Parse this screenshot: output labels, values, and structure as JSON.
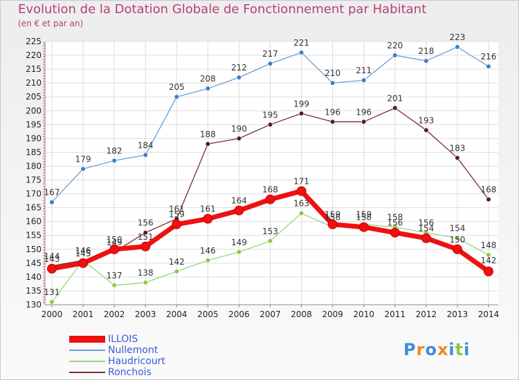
{
  "chart_data": {
    "type": "line",
    "title": "Evolution de la Dotation Globale de Fonctionnement par Habitant",
    "subtitle": "(en € et par an)",
    "categories": [
      "2000",
      "2001",
      "2002",
      "2003",
      "2004",
      "2005",
      "2006",
      "2007",
      "2008",
      "2009",
      "2010",
      "2011",
      "2012",
      "2013",
      "2014"
    ],
    "ylim": [
      130,
      225
    ],
    "yticks": [
      130,
      135,
      140,
      145,
      150,
      155,
      160,
      165,
      170,
      175,
      180,
      185,
      190,
      195,
      200,
      205,
      210,
      215,
      220,
      225
    ],
    "grid": true,
    "legend_position": "bottom-left",
    "series": [
      {
        "name": "Nullemont",
        "color": "#6b9fd4",
        "marker": "#3d7fc7",
        "values": [
          167,
          179,
          182,
          184,
          205,
          208,
          212,
          217,
          221,
          210,
          211,
          220,
          218,
          223,
          216
        ]
      },
      {
        "name": "Ronchois",
        "color": "#7a2c2c",
        "marker": "#5a1a1a",
        "values": [
          144,
          146,
          149,
          156,
          161,
          188,
          190,
          195,
          199,
          196,
          196,
          201,
          193,
          183,
          168
        ]
      },
      {
        "name": "Haudricourt",
        "color": "#9bd37a",
        "marker": "#88cc44",
        "values": [
          131,
          146,
          137,
          138,
          142,
          146,
          149,
          153,
          163,
          158,
          159,
          158,
          156,
          154,
          148
        ]
      },
      {
        "name": "ILLOIS",
        "color": "#ee1111",
        "marker": "#ee1111",
        "values": [
          143,
          145,
          150,
          151,
          159,
          161,
          164,
          168,
          171,
          159,
          158,
          156,
          154,
          150,
          142
        ]
      }
    ],
    "legend_order": [
      "ILLOIS",
      "Nullemont",
      "Haudricourt",
      "Ronchois"
    ]
  },
  "brand": {
    "text": "Proxiti",
    "colors": [
      "#3b8fd9",
      "#f08a1c",
      "#3b8fd9",
      "#f08a1c",
      "#3b8fd9",
      "#8bc63f",
      "#3b8fd9"
    ]
  }
}
